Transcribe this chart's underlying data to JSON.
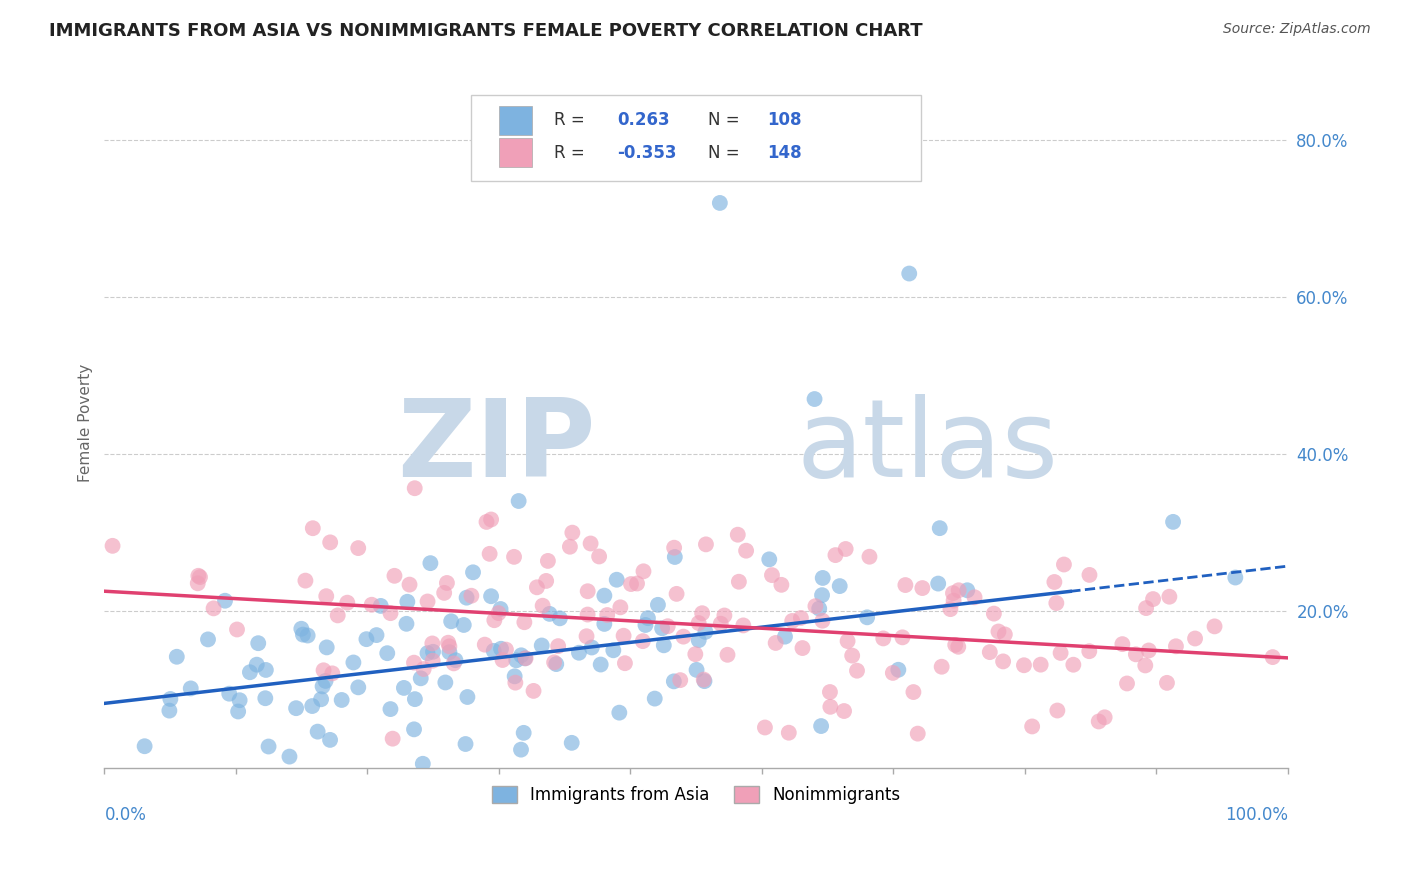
{
  "title": "IMMIGRANTS FROM ASIA VS NONIMMIGRANTS FEMALE POVERTY CORRELATION CHART",
  "source": "Source: ZipAtlas.com",
  "ylabel": "Female Poverty",
  "x_range": [
    0.0,
    1.0
  ],
  "y_range": [
    0.0,
    0.88
  ],
  "blue_R": 0.263,
  "blue_N": 108,
  "pink_R": -0.353,
  "pink_N": 148,
  "blue_color": "#7EB3E0",
  "pink_color": "#F0A0B8",
  "blue_line_color": "#2060C0",
  "pink_line_color": "#E04070",
  "legend_blue_label": "Immigrants from Asia",
  "legend_pink_label": "Nonimmigrants",
  "watermark_zip": "ZIP",
  "watermark_atlas": "atlas",
  "watermark_color": "#C8D8E8",
  "background_color": "#FFFFFF",
  "grid_color": "#CCCCCC",
  "title_color": "#222222",
  "source_color": "#555555",
  "blue_seed": 42,
  "pink_seed": 123,
  "blue_trend_intercept": 0.082,
  "blue_trend_slope": 0.175,
  "pink_trend_intercept": 0.225,
  "pink_trend_slope": -0.085,
  "tick_color": "#4488CC",
  "axis_label_color": "#666666"
}
